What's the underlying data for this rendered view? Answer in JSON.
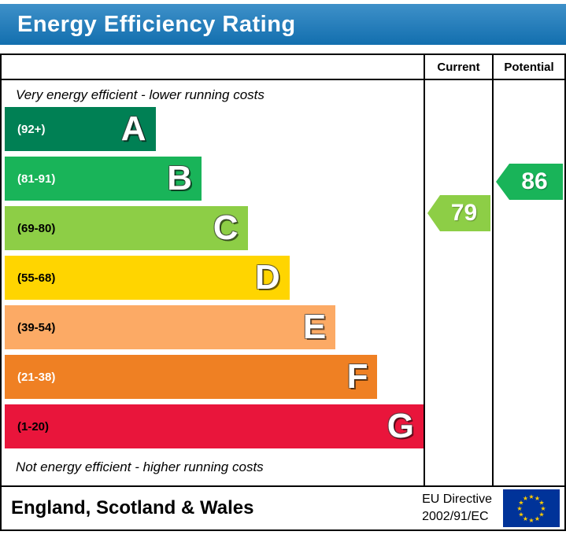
{
  "title": "Energy Efficiency Rating",
  "colors": {
    "title_bg": "#1478bd"
  },
  "columns": {
    "current": "Current",
    "potential": "Potential"
  },
  "notes": {
    "top": "Very energy efficient - lower running costs",
    "bottom": "Not energy efficient - higher running costs"
  },
  "chart_data": {
    "type": "bar",
    "title": "Energy Efficiency Rating",
    "bands": [
      {
        "letter": "A",
        "range": "(92+)",
        "min": 92,
        "max": 100,
        "color": "#008054",
        "width_pct": 36,
        "text_color": "#ffffff"
      },
      {
        "letter": "B",
        "range": "(81-91)",
        "min": 81,
        "max": 91,
        "color": "#19b459",
        "width_pct": 47,
        "text_color": "#ffffff"
      },
      {
        "letter": "C",
        "range": "(69-80)",
        "min": 69,
        "max": 80,
        "color": "#8dce46",
        "width_pct": 58,
        "text_color": "#000000"
      },
      {
        "letter": "D",
        "range": "(55-68)",
        "min": 55,
        "max": 68,
        "color": "#ffd500",
        "width_pct": 68,
        "text_color": "#000000"
      },
      {
        "letter": "E",
        "range": "(39-54)",
        "min": 39,
        "max": 54,
        "color": "#fcaa65",
        "width_pct": 79,
        "text_color": "#000000"
      },
      {
        "letter": "F",
        "range": "(21-38)",
        "min": 21,
        "max": 38,
        "color": "#ef8023",
        "width_pct": 89,
        "text_color": "#ffffff"
      },
      {
        "letter": "G",
        "range": "(1-20)",
        "min": 1,
        "max": 20,
        "color": "#e9153b",
        "width_pct": 100,
        "text_color": "#000000"
      }
    ],
    "current": {
      "value": "79",
      "band": "C",
      "color": "#8dce46"
    },
    "potential": {
      "value": "86",
      "band": "B",
      "color": "#19b459"
    }
  },
  "footer": {
    "region": "England, Scotland & Wales",
    "directive_line1": "EU Directive",
    "directive_line2": "2002/91/EC"
  },
  "eu_flag": {
    "bg": "#003399",
    "star_color": "#ffcc00",
    "star_count": 12
  }
}
